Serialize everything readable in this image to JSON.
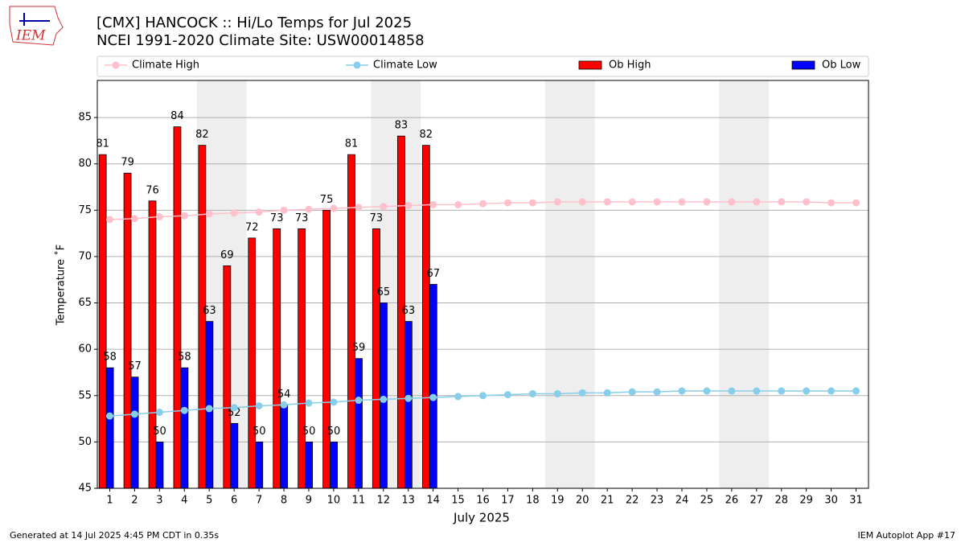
{
  "chart_data": {
    "type": "bar",
    "title": "[CMX] HANCOCK :: Hi/Lo Temps for Jul 2025",
    "subtitle": "NCEI 1991-2020 Climate Site: USW00014858",
    "x_label": "July 2025",
    "y_label": "Temperature ˚F",
    "footer_left": "Generated at 14 Jul 2025 4:45 PM CDT in 0.35s",
    "footer_right": "IEM Autoplot App #17",
    "logo_text": "IEM",
    "x": [
      1,
      2,
      3,
      4,
      5,
      6,
      7,
      8,
      9,
      10,
      11,
      12,
      13,
      14,
      15,
      16,
      17,
      18,
      19,
      20,
      21,
      22,
      23,
      24,
      25,
      26,
      27,
      28,
      29,
      30,
      31
    ],
    "xlim": [
      0.5,
      31.5
    ],
    "xticks": [
      1,
      2,
      3,
      4,
      5,
      6,
      7,
      8,
      9,
      10,
      11,
      12,
      13,
      14,
      15,
      16,
      17,
      18,
      19,
      20,
      21,
      22,
      23,
      24,
      25,
      26,
      27,
      28,
      29,
      30,
      31
    ],
    "ylim": [
      45,
      89
    ],
    "yticks": [
      45,
      50,
      55,
      60,
      65,
      70,
      75,
      80,
      85
    ],
    "grid": true,
    "shaded_days": [
      5,
      6,
      12,
      13,
      19,
      20,
      26,
      27
    ],
    "shade_color": "#eeeeee",
    "series": [
      {
        "name": "Climate High",
        "kind": "line",
        "color": "#ffc0cb",
        "values": [
          74.0,
          74.1,
          74.3,
          74.4,
          74.6,
          74.7,
          74.8,
          75.0,
          75.1,
          75.2,
          75.3,
          75.4,
          75.5,
          75.6,
          75.6,
          75.7,
          75.8,
          75.8,
          75.9,
          75.9,
          75.9,
          75.9,
          75.9,
          75.9,
          75.9,
          75.9,
          75.9,
          75.9,
          75.9,
          75.8,
          75.8
        ]
      },
      {
        "name": "Climate Low",
        "kind": "line",
        "color": "#87ceeb",
        "values": [
          52.8,
          53.0,
          53.2,
          53.4,
          53.6,
          53.7,
          53.9,
          54.0,
          54.2,
          54.3,
          54.5,
          54.6,
          54.7,
          54.8,
          54.9,
          55.0,
          55.1,
          55.2,
          55.2,
          55.3,
          55.3,
          55.4,
          55.4,
          55.5,
          55.5,
          55.5,
          55.5,
          55.5,
          55.5,
          55.5,
          55.5
        ]
      },
      {
        "name": "Ob High",
        "kind": "bar",
        "color": "#ff0000",
        "values": [
          81,
          79,
          76,
          84,
          82,
          69,
          72,
          73,
          73,
          75,
          81,
          73,
          83,
          82,
          null,
          null,
          null,
          null,
          null,
          null,
          null,
          null,
          null,
          null,
          null,
          null,
          null,
          null,
          null,
          null,
          null
        ]
      },
      {
        "name": "Ob Low",
        "kind": "bar",
        "color": "#0000ff",
        "values": [
          58,
          57,
          50,
          58,
          63,
          52,
          50,
          54,
          50,
          50,
          59,
          65,
          63,
          67,
          null,
          null,
          null,
          null,
          null,
          null,
          null,
          null,
          null,
          null,
          null,
          null,
          null,
          null,
          null,
          null,
          null
        ]
      }
    ]
  }
}
